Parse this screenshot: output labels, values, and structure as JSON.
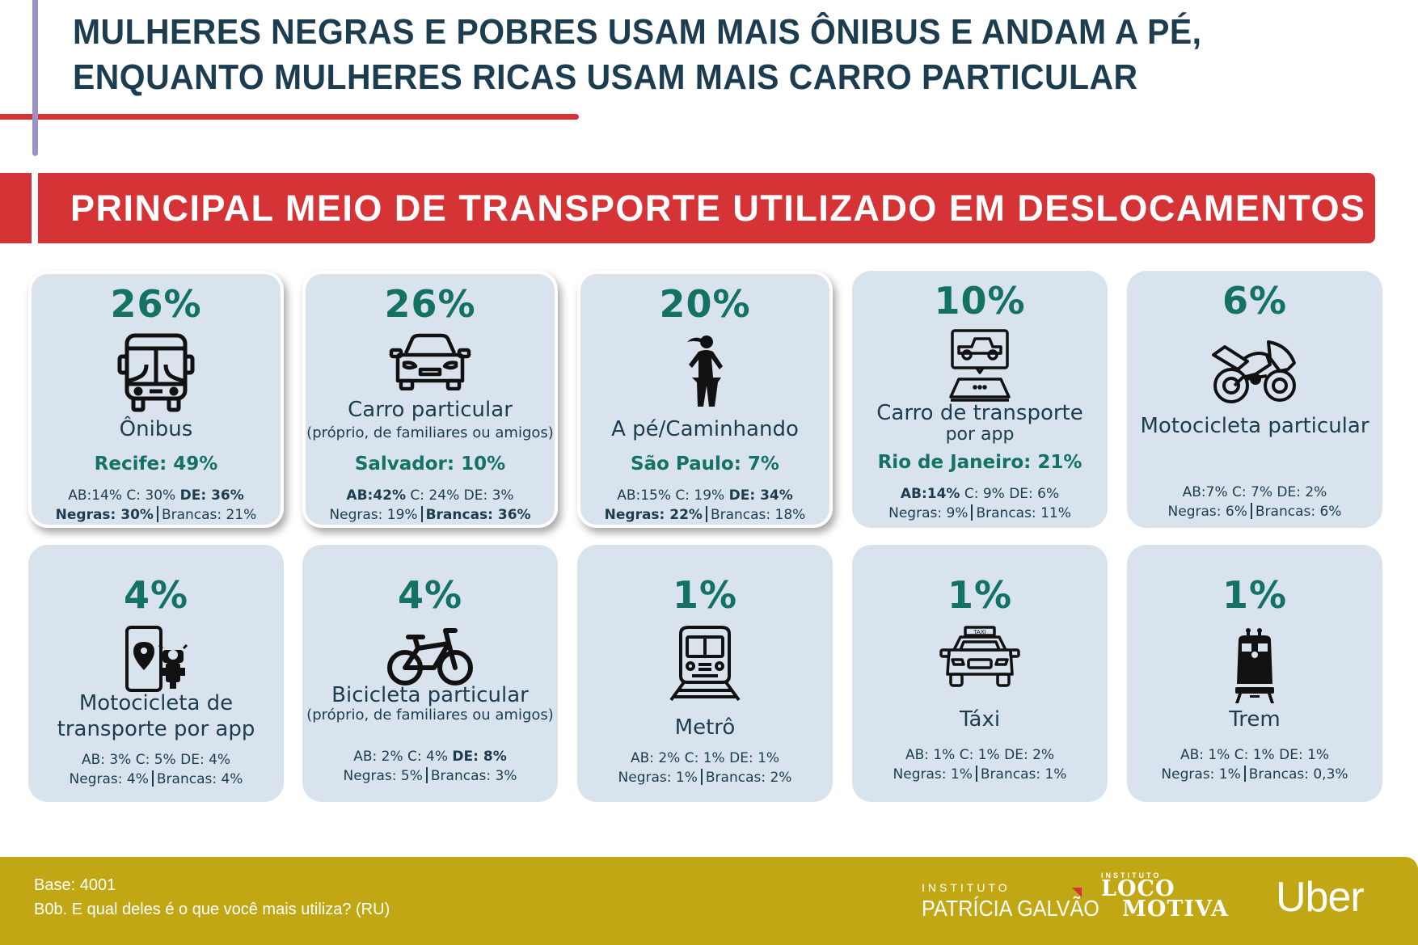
{
  "header": {
    "title_line1": "MULHERES NEGRAS E POBRES USAM MAIS ÔNIBUS E ANDAM A PÉ,",
    "title_line2": "ENQUANTO MULHERES RICAS USAM MAIS CARRO PARTICULAR",
    "section_title": "PRINCIPAL MEIO DE TRANSPORTE UTILIZADO EM DESLOCAMENTOS"
  },
  "colors": {
    "accent_red": "#d63336",
    "accent_purple": "#9b93c8",
    "title_navy": "#1c3d50",
    "percent_green": "#137262",
    "card_bg": "#d8e3ed",
    "footer_gold": "#c2a714"
  },
  "cards": [
    {
      "percent": "26%",
      "icon": "bus-icon",
      "label": "Ônibus",
      "sub": "",
      "city": "Recife: 49%",
      "highlight": true,
      "stats1": [
        {
          "t": "AB:14% C: 30% ",
          "b": false
        },
        {
          "t": "DE: 36%",
          "b": true
        }
      ],
      "stats2": [
        {
          "t": "Negras: 30%",
          "b": true
        },
        {
          "t": "Brancas: 21%",
          "b": false
        }
      ]
    },
    {
      "percent": "26%",
      "icon": "car-icon",
      "label": "Carro particular",
      "sub": "(próprio, de familiares ou amigos)",
      "city": "Salvador: 10%",
      "highlight": true,
      "stats1": [
        {
          "t": "AB:42%",
          "b": true
        },
        {
          "t": " C: 24% DE: 3%",
          "b": false
        }
      ],
      "stats2": [
        {
          "t": "Negras: 19%",
          "b": false
        },
        {
          "t": "Brancas: 36%",
          "b": true
        }
      ]
    },
    {
      "percent": "20%",
      "icon": "walking-woman-icon",
      "label": "A pé/Caminhando",
      "sub": "",
      "city": "São Paulo: 7%",
      "highlight": true,
      "stats1": [
        {
          "t": "AB:15% C: 19% ",
          "b": false
        },
        {
          "t": "DE: 34%",
          "b": true
        }
      ],
      "stats2": [
        {
          "t": "Negras: 22%",
          "b": true
        },
        {
          "t": "Brancas: 18%",
          "b": false
        }
      ]
    },
    {
      "percent": "10%",
      "icon": "ride-app-car-icon",
      "label": "Carro de transporte",
      "sub": "por app",
      "city": "Rio de Janeiro: 21%",
      "highlight": false,
      "stats1": [
        {
          "t": "AB:14%",
          "b": true
        },
        {
          "t": " C: 9% DE: 6%",
          "b": false
        }
      ],
      "stats2": [
        {
          "t": "Negras: 9%",
          "b": false
        },
        {
          "t": "Brancas: 11%",
          "b": false
        }
      ]
    },
    {
      "percent": "6%",
      "icon": "motorcycle-icon",
      "label": "Motocicleta particular",
      "sub": "",
      "city": "",
      "highlight": false,
      "stats1": [
        {
          "t": "AB:7% C: 7% DE: 2%",
          "b": false
        }
      ],
      "stats2": [
        {
          "t": "Negras: 6%",
          "b": false
        },
        {
          "t": "Brancas: 6%",
          "b": false
        }
      ]
    },
    {
      "percent": "4%",
      "icon": "moto-app-icon",
      "label": "Motocicleta de",
      "label2": "transporte por app",
      "sub": "",
      "city": "",
      "highlight": false,
      "stats1": [
        {
          "t": "AB: 3% C: 5% DE: 4%",
          "b": false
        }
      ],
      "stats2": [
        {
          "t": "Negras: 4%",
          "b": false
        },
        {
          "t": "Brancas: 4%",
          "b": false
        }
      ]
    },
    {
      "percent": "4%",
      "icon": "bicycle-icon",
      "label": "Bicicleta particular",
      "sub": "(próprio, de familiares ou amigos)",
      "city": "",
      "highlight": false,
      "stats1": [
        {
          "t": "AB: 2% C: 4% ",
          "b": false
        },
        {
          "t": "DE: 8%",
          "b": true
        }
      ],
      "stats2": [
        {
          "t": "Negras: 5%",
          "b": false
        },
        {
          "t": "Brancas: 3%",
          "b": false
        }
      ]
    },
    {
      "percent": "1%",
      "icon": "metro-icon",
      "label": "Metrô",
      "sub": "",
      "city": "",
      "highlight": false,
      "stats1": [
        {
          "t": "AB: 2% C: 1% DE: 1%",
          "b": false
        }
      ],
      "stats2": [
        {
          "t": "Negras: 1%",
          "b": false
        },
        {
          "t": "Brancas: 2%",
          "b": false
        }
      ]
    },
    {
      "percent": "1%",
      "icon": "taxi-icon",
      "label": "Táxi",
      "sub": "",
      "city": "",
      "highlight": false,
      "taxi_sign": "TAXI",
      "stats1": [
        {
          "t": "AB: 1% C: 1% DE: 2%",
          "b": false
        }
      ],
      "stats2": [
        {
          "t": "Negras: 1%",
          "b": false
        },
        {
          "t": "Brancas: 1%",
          "b": false
        }
      ]
    },
    {
      "percent": "1%",
      "icon": "train-icon",
      "label": "Trem",
      "sub": "",
      "city": "",
      "highlight": false,
      "stats1": [
        {
          "t": "AB: 1% C: 1% DE: 1%",
          "b": false
        }
      ],
      "stats2": [
        {
          "t": "Negras: 1%",
          "b": false
        },
        {
          "t": "Brancas: 0,3%",
          "b": false
        }
      ]
    }
  ],
  "footer": {
    "base": "Base: 4001",
    "question": "B0b. E qual deles é o que você mais utiliza? (RU)",
    "logo_pg_small": "INSTITUTO",
    "logo_pg_big": "PATRÍCIA GALVÃO",
    "logo_lm_small": "INSTITUTO",
    "logo_lm_line1": "LOCO",
    "logo_lm_line2": "MOTIVA",
    "logo_uber": "Uber"
  }
}
